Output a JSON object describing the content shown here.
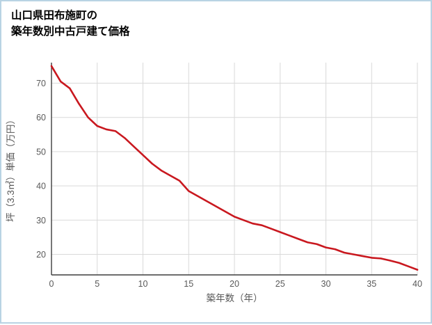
{
  "page": {
    "border_color": "#b9d3e3",
    "background": "#ffffff"
  },
  "title": {
    "text": "山口県田布施町の\n築年数別中古戸建て価格"
  },
  "chart_data": {
    "type": "line",
    "title": "山口県田布施町の築年数別中古戸建て価格",
    "xlabel": "築年数（年）",
    "ylabel": "坪（3.3㎡）単価（万円）",
    "x": [
      0,
      1,
      2,
      3,
      4,
      5,
      6,
      7,
      8,
      9,
      10,
      11,
      12,
      13,
      14,
      15,
      16,
      17,
      18,
      19,
      20,
      21,
      22,
      23,
      24,
      25,
      26,
      27,
      28,
      29,
      30,
      31,
      32,
      33,
      34,
      35,
      36,
      37,
      38,
      39,
      40
    ],
    "values": [
      75,
      70.5,
      68.5,
      64,
      60,
      57.5,
      56.5,
      56,
      54,
      51.5,
      49,
      46.5,
      44.5,
      43,
      41.5,
      38.5,
      37,
      35.5,
      34,
      32.5,
      31,
      30,
      29,
      28.5,
      27.5,
      26.5,
      25.5,
      24.5,
      23.5,
      23,
      22,
      21.5,
      20.5,
      20,
      19.5,
      19,
      18.8,
      18.2,
      17.5,
      16.5,
      15.5
    ],
    "xlim": [
      0,
      40
    ],
    "ylim": [
      14,
      76
    ],
    "x_ticks": [
      0,
      5,
      10,
      15,
      20,
      25,
      30,
      35,
      40
    ],
    "y_ticks": [
      20,
      30,
      40,
      50,
      60,
      70
    ],
    "grid": true,
    "legend_position": "none",
    "line_color": "#c9181f",
    "grid_color": "#d9d9d9",
    "axis_color": "#3d3d3d",
    "tick_label_color": "#595959"
  }
}
